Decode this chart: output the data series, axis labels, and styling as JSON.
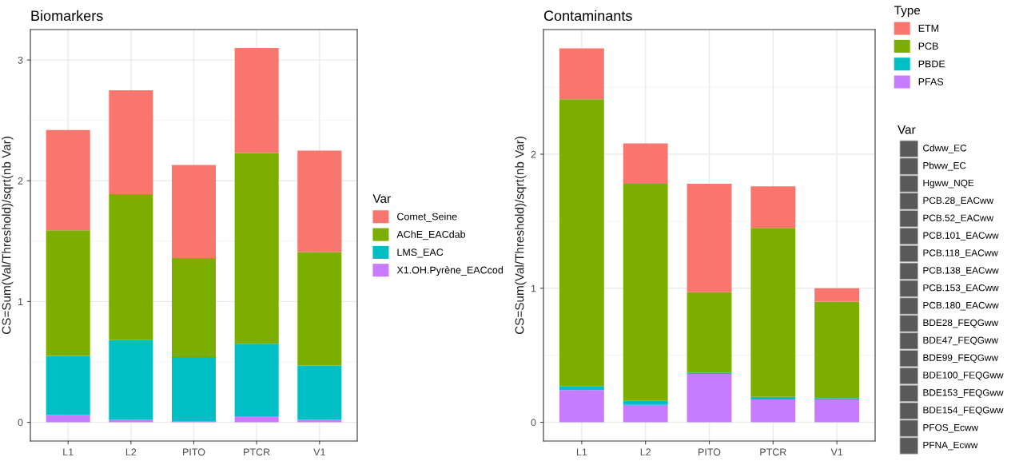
{
  "chart_data": [
    {
      "type": "bar",
      "title": "Biomarkers",
      "ylabel": "CS=Sum(Val/Threshold)/sqrt(nb Var)",
      "categories": [
        "L1",
        "L2",
        "PITO",
        "PTCR",
        "V1"
      ],
      "stacked": true,
      "legend": "right",
      "legend_title": "Var",
      "grid": true,
      "ylim": [
        -0.155,
        3.252
      ],
      "yticks": [
        0,
        1,
        2,
        3
      ],
      "series": [
        {
          "name": "X1.OH.Pyrène_EACcod",
          "color": "#c77cff",
          "values": [
            0.06,
            0.02,
            0.01,
            0.05,
            0.02
          ]
        },
        {
          "name": "LMS_EAC",
          "color": "#00bfc4",
          "values": [
            0.49,
            0.66,
            0.53,
            0.6,
            0.45
          ]
        },
        {
          "name": "AChE_EACdab",
          "color": "#7cae00",
          "values": [
            1.04,
            1.21,
            0.82,
            1.58,
            0.94
          ]
        },
        {
          "name": "Comet_Seine",
          "color": "#f8766d",
          "values": [
            0.83,
            0.86,
            0.77,
            0.87,
            0.84
          ]
        }
      ]
    },
    {
      "type": "bar",
      "title": "Contaminants",
      "ylabel": "CS=Sum(Val/Threshold)/sqrt(nb Var)",
      "categories": [
        "L1",
        "L2",
        "PITO",
        "PTCR",
        "V1"
      ],
      "stacked": true,
      "legend": "top right",
      "legend_title": "Type",
      "grid": true,
      "ylim": [
        -0.14,
        2.93
      ],
      "yticks": [
        0,
        1,
        2
      ],
      "series": [
        {
          "name": "PFAS",
          "color": "#c77cff",
          "values": [
            0.24,
            0.13,
            0.36,
            0.17,
            0.17
          ]
        },
        {
          "name": "PBDE",
          "color": "#00bfc4",
          "values": [
            0.03,
            0.03,
            0.01,
            0.02,
            0.01
          ]
        },
        {
          "name": "PCB",
          "color": "#7cae00",
          "values": [
            2.14,
            1.62,
            0.6,
            1.26,
            0.72
          ]
        },
        {
          "name": "ETM",
          "color": "#f8766d",
          "values": [
            0.38,
            0.3,
            0.81,
            0.31,
            0.1
          ]
        }
      ]
    },
    {
      "type": "other",
      "title": "Var",
      "annotations": [
        "Cdww_EC",
        "Pbww_EC",
        "Hgww_NQE",
        "PCB.28_EACww",
        "PCB.52_EACww",
        "PCB.101_EACww",
        "PCB.118_EACww",
        "PCB.138_EACww",
        "PCB.153_EACww",
        "PCB.180_EACww",
        "BDE28_FEQGww",
        "BDE47_FEQGww",
        "BDE99_FEQGww",
        "BDE100_FEQGww",
        "BDE153_FEQGww",
        "BDE154_FEQGww",
        "PFOS_Ecww",
        "PFNA_Ecww"
      ]
    }
  ]
}
